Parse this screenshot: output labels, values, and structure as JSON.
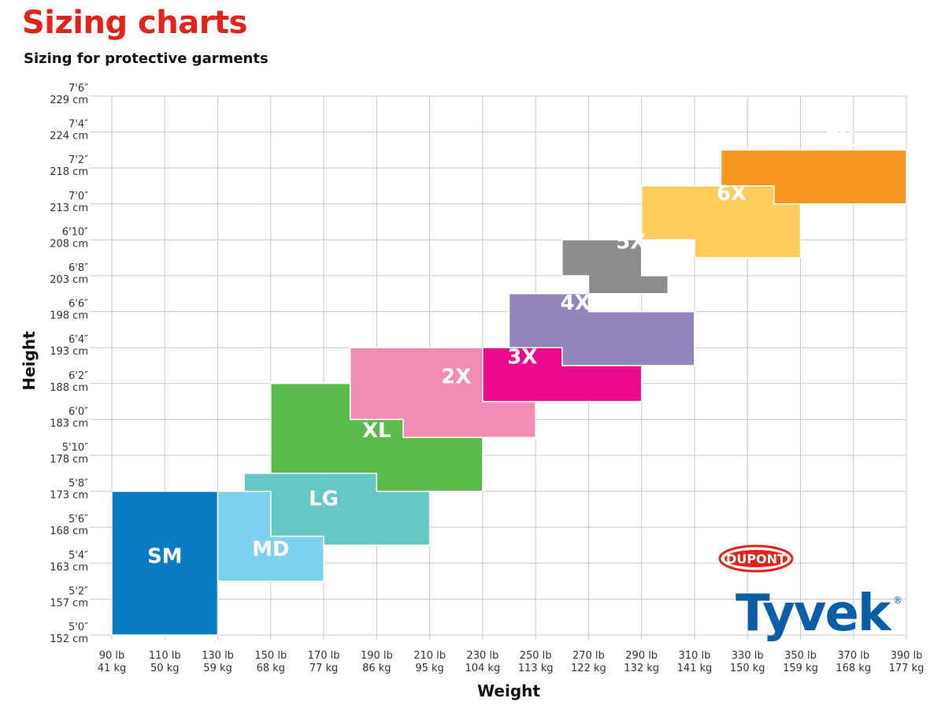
{
  "header": {
    "title": "Sizing charts",
    "subtitle": "Sizing for protective garments"
  },
  "logo": {
    "brand": "DUPONT",
    "product": "Tyvek",
    "registered": "®",
    "brand_color": "#e2231a",
    "product_color": "#0a5ea8"
  },
  "chart_data": {
    "type": "step-region",
    "xlabel": "Weight",
    "ylabel": "Height",
    "x_ticks": [
      {
        "lb": 90,
        "top": "90 lb",
        "bottom": "41 kg"
      },
      {
        "lb": 110,
        "top": "110 lb",
        "bottom": "50 kg"
      },
      {
        "lb": 130,
        "top": "130 lb",
        "bottom": "59 kg"
      },
      {
        "lb": 150,
        "top": "150 lb",
        "bottom": "68 kg"
      },
      {
        "lb": 170,
        "top": "170 lb",
        "bottom": "77 kg"
      },
      {
        "lb": 190,
        "top": "190 lb",
        "bottom": "86 kg"
      },
      {
        "lb": 210,
        "top": "210 lb",
        "bottom": "95 kg"
      },
      {
        "lb": 230,
        "top": "230 lb",
        "bottom": "104 kg"
      },
      {
        "lb": 250,
        "top": "250 lb",
        "bottom": "113 kg"
      },
      {
        "lb": 270,
        "top": "270 lb",
        "bottom": "122 kg"
      },
      {
        "lb": 290,
        "top": "290 lb",
        "bottom": "132 kg"
      },
      {
        "lb": 310,
        "top": "310 lb",
        "bottom": "141 kg"
      },
      {
        "lb": 330,
        "top": "330 lb",
        "bottom": "150 kg"
      },
      {
        "lb": 350,
        "top": "350 lb",
        "bottom": "159 kg"
      },
      {
        "lb": 370,
        "top": "370 lb",
        "bottom": "168 kg"
      },
      {
        "lb": 390,
        "top": "390 lb",
        "bottom": "177 kg"
      }
    ],
    "y_ticks": [
      {
        "in": 60,
        "top": "5'0″",
        "bottom": "152 cm"
      },
      {
        "in": 62,
        "top": "5'2″",
        "bottom": "157 cm"
      },
      {
        "in": 64,
        "top": "5'4″",
        "bottom": "163 cm"
      },
      {
        "in": 66,
        "top": "5'6″",
        "bottom": "168 cm"
      },
      {
        "in": 68,
        "top": "5'8″",
        "bottom": "173 cm"
      },
      {
        "in": 70,
        "top": "5'10″",
        "bottom": "178 cm"
      },
      {
        "in": 72,
        "top": "6'0″",
        "bottom": "183 cm"
      },
      {
        "in": 74,
        "top": "6'2″",
        "bottom": "188 cm"
      },
      {
        "in": 76,
        "top": "6'4″",
        "bottom": "193 cm"
      },
      {
        "in": 78,
        "top": "6'6″",
        "bottom": "198 cm"
      },
      {
        "in": 80,
        "top": "6'8″",
        "bottom": "203 cm"
      },
      {
        "in": 82,
        "top": "6'10″",
        "bottom": "208 cm"
      },
      {
        "in": 84,
        "top": "7'0″",
        "bottom": "213 cm"
      },
      {
        "in": 86,
        "top": "7'2″",
        "bottom": "218 cm"
      },
      {
        "in": 88,
        "top": "7'4″",
        "bottom": "224 cm"
      },
      {
        "in": 90,
        "top": "7'6″",
        "bottom": "229 cm"
      }
    ],
    "x_range_lb": [
      90,
      390
    ],
    "y_range_in": [
      60,
      90
    ],
    "grid": true,
    "regions": [
      {
        "name": "SM",
        "color": "#0a7cc4",
        "label_at": [
          110,
          64.4
        ],
        "polygon": [
          [
            90,
            60
          ],
          [
            130,
            60
          ],
          [
            130,
            68
          ],
          [
            90,
            68
          ]
        ]
      },
      {
        "name": "MD",
        "color": "#7dd0f0",
        "label_at": [
          150,
          64.8
        ],
        "polygon": [
          [
            130,
            63
          ],
          [
            170,
            63
          ],
          [
            170,
            65.5
          ],
          [
            150,
            65.5
          ],
          [
            150,
            68
          ],
          [
            130,
            68
          ]
        ]
      },
      {
        "name": "LG",
        "color": "#66c8c4",
        "label_at": [
          170,
          67.6
        ],
        "polygon": [
          [
            140,
            69
          ],
          [
            190,
            69
          ],
          [
            190,
            68
          ],
          [
            210,
            68
          ],
          [
            210,
            65
          ],
          [
            170,
            65
          ],
          [
            170,
            65.5
          ],
          [
            150,
            65.5
          ],
          [
            150,
            68
          ],
          [
            140,
            68
          ]
        ]
      },
      {
        "name": "XL",
        "color": "#5aba4a",
        "label_at": [
          190,
          71.4
        ],
        "polygon": [
          [
            150,
            69
          ],
          [
            150,
            74
          ],
          [
            180,
            74
          ],
          [
            180,
            72
          ],
          [
            230,
            72
          ],
          [
            230,
            68
          ],
          [
            190,
            68
          ],
          [
            190,
            69
          ]
        ]
      },
      {
        "name": "2X",
        "color": "#f28cb4",
        "label_at": [
          220,
          74.4
        ],
        "polygon": [
          [
            180,
            72
          ],
          [
            180,
            76
          ],
          [
            230,
            76
          ],
          [
            230,
            73
          ],
          [
            250,
            73
          ],
          [
            250,
            71
          ],
          [
            200,
            71
          ],
          [
            200,
            72
          ]
        ]
      },
      {
        "name": "3X",
        "color": "#ec0a8c",
        "label_at": [
          245,
          75.5
        ],
        "polygon": [
          [
            230,
            73
          ],
          [
            230,
            76
          ],
          [
            260,
            76
          ],
          [
            260,
            75
          ],
          [
            290,
            75
          ],
          [
            290,
            73
          ]
        ]
      },
      {
        "name": "4X",
        "color": "#9484bc",
        "label_at": [
          265,
          78.5
        ],
        "polygon": [
          [
            240,
            76
          ],
          [
            240,
            79
          ],
          [
            270,
            79
          ],
          [
            270,
            78
          ],
          [
            310,
            78
          ],
          [
            310,
            75
          ],
          [
            260,
            75
          ],
          [
            260,
            76
          ]
        ]
      },
      {
        "name": "5X",
        "color": "#8a8c8e",
        "label_at": [
          286,
          81.9
        ],
        "polygon": [
          [
            260,
            80
          ],
          [
            260,
            82
          ],
          [
            290,
            82
          ],
          [
            290,
            80
          ],
          [
            300,
            80
          ],
          [
            300,
            79
          ],
          [
            270,
            79
          ],
          [
            270,
            80
          ]
        ]
      },
      {
        "name": "6X",
        "color": "#fdcc5c",
        "label_at": [
          324,
          84.6
        ],
        "polygon": [
          [
            290,
            82
          ],
          [
            290,
            85
          ],
          [
            340,
            85
          ],
          [
            340,
            84
          ],
          [
            350,
            84
          ],
          [
            350,
            81
          ],
          [
            310,
            81
          ],
          [
            310,
            82
          ]
        ]
      },
      {
        "name": "7X",
        "color": "#f79620",
        "label_at": [
          365,
          87.6
        ],
        "polygon": [
          [
            320,
            85
          ],
          [
            320,
            87
          ],
          [
            390,
            87
          ],
          [
            390,
            84
          ],
          [
            340,
            84
          ],
          [
            340,
            85
          ]
        ]
      }
    ]
  }
}
